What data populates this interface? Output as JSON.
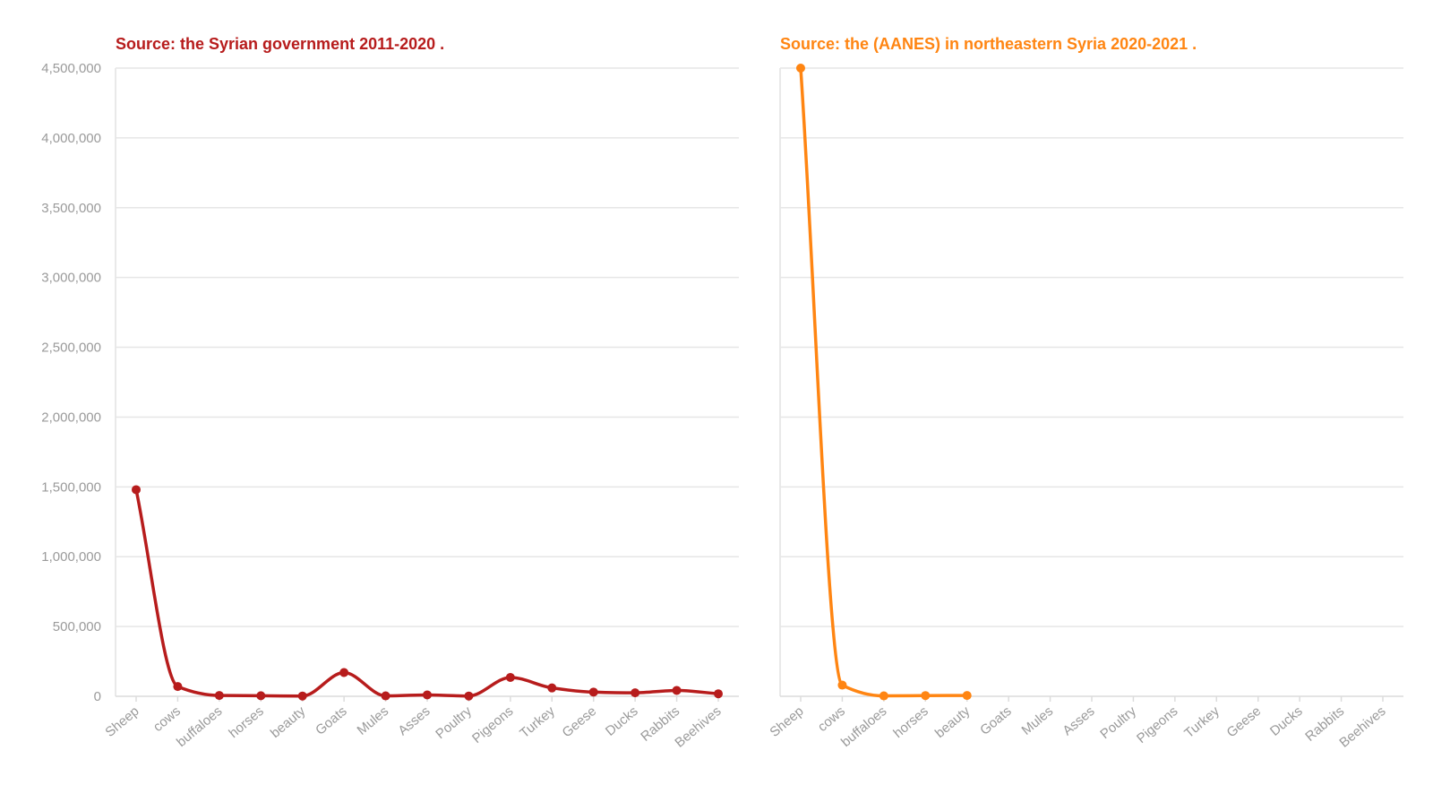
{
  "chart_data": [
    {
      "type": "line",
      "title": "Source: the Syrian government 2011-2020 .",
      "color": "#b71c1c",
      "xlabel": "",
      "ylabel": "",
      "ylim": [
        0,
        4500000
      ],
      "yticks": [
        0,
        500000,
        1000000,
        1500000,
        2000000,
        2500000,
        3000000,
        3500000,
        4000000,
        4500000
      ],
      "ytick_labels": [
        "0",
        "500,000",
        "1,000,000",
        "1,500,000",
        "2,000,000",
        "2,500,000",
        "3,000,000",
        "3,500,000",
        "4,000,000",
        "4,500,000"
      ],
      "grid": true,
      "categories": [
        "Sheep",
        "cows",
        "buffaloes",
        "horses",
        "beauty",
        "Goats",
        "Mules",
        "Asses",
        "Poultry",
        "Pigeons",
        "Turkey",
        "Geese",
        "Ducks",
        "Rabbits",
        "Beehives"
      ],
      "values": [
        1480000,
        70000,
        6000,
        4000,
        2000,
        170000,
        3000,
        10000,
        2000,
        135000,
        60000,
        30000,
        25000,
        42000,
        18000
      ]
    },
    {
      "type": "line",
      "title": "Source: the (AANES) in northeastern Syria 2020-2021 .",
      "color": "#ff8512",
      "xlabel": "",
      "ylabel": "",
      "ylim": [
        0,
        4500000
      ],
      "yticks": [
        0,
        500000,
        1000000,
        1500000,
        2000000,
        2500000,
        3000000,
        3500000,
        4000000,
        4500000
      ],
      "grid": true,
      "categories": [
        "Sheep",
        "cows",
        "buffaloes",
        "horses",
        "beauty",
        "Goats",
        "Mules",
        "Asses",
        "Poultry",
        "Pigeons",
        "Turkey",
        "Geese",
        "Ducks",
        "Rabbits",
        "Beehives"
      ],
      "values": [
        4500000,
        80000,
        3000,
        5000,
        6000,
        null,
        null,
        null,
        null,
        null,
        null,
        null,
        null,
        null,
        null
      ]
    }
  ]
}
